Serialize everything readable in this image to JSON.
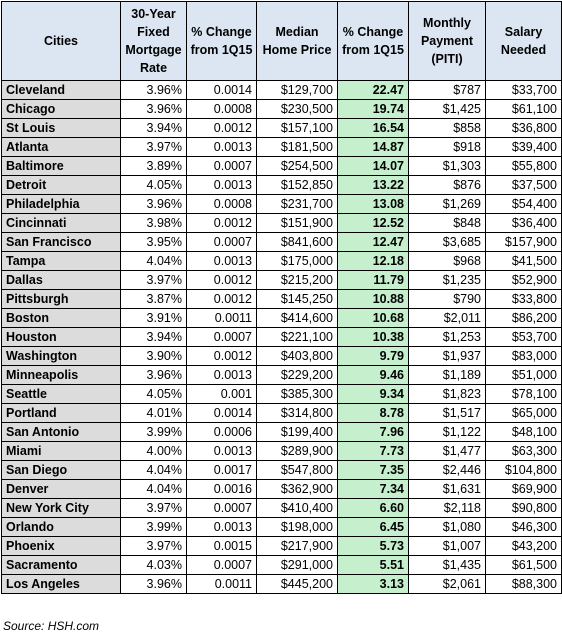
{
  "headers": [
    "Cities",
    "30-Year Fixed Mortgage Rate",
    "% Change from 1Q15",
    "Median Home Price",
    "% Change from 1Q15",
    "Monthly Payment (PITI)",
    "Salary Needed"
  ],
  "rows": [
    [
      "Cleveland",
      "3.96%",
      "0.0014",
      "$129,700",
      "22.47",
      "$787",
      "$33,700"
    ],
    [
      "Chicago",
      "3.96%",
      "0.0008",
      "$230,500",
      "19.74",
      "$1,425",
      "$61,100"
    ],
    [
      "St Louis",
      "3.94%",
      "0.0012",
      "$157,100",
      "16.54",
      "$858",
      "$36,800"
    ],
    [
      "Atlanta",
      "3.97%",
      "0.0013",
      "$181,500",
      "14.87",
      "$918",
      "$39,400"
    ],
    [
      "Baltimore",
      "3.89%",
      "0.0007",
      "$254,500",
      "14.07",
      "$1,303",
      "$55,800"
    ],
    [
      "Detroit",
      "4.05%",
      "0.0013",
      "$152,850",
      "13.22",
      "$876",
      "$37,500"
    ],
    [
      "Philadelphia",
      "3.96%",
      "0.0008",
      "$231,700",
      "13.08",
      "$1,269",
      "$54,400"
    ],
    [
      "Cincinnati",
      "3.98%",
      "0.0012",
      "$151,900",
      "12.52",
      "$848",
      "$36,400"
    ],
    [
      "San Francisco",
      "3.95%",
      "0.0007",
      "$841,600",
      "12.47",
      "$3,685",
      "$157,900"
    ],
    [
      "Tampa",
      "4.04%",
      "0.0013",
      "$175,000",
      "12.18",
      "$968",
      "$41,500"
    ],
    [
      "Dallas",
      "3.97%",
      "0.0012",
      "$215,200",
      "11.79",
      "$1,235",
      "$52,900"
    ],
    [
      "Pittsburgh",
      "3.87%",
      "0.0012",
      "$145,250",
      "10.88",
      "$790",
      "$33,800"
    ],
    [
      "Boston",
      "3.91%",
      "0.0011",
      "$414,600",
      "10.68",
      "$2,011",
      "$86,200"
    ],
    [
      "Houston",
      "3.94%",
      "0.0007",
      "$221,100",
      "10.38",
      "$1,253",
      "$53,700"
    ],
    [
      "Washington",
      "3.90%",
      "0.0012",
      "$403,800",
      "9.79",
      "$1,937",
      "$83,000"
    ],
    [
      "Minneapolis",
      "3.96%",
      "0.0013",
      "$229,200",
      "9.46",
      "$1,189",
      "$51,000"
    ],
    [
      "Seattle",
      "4.05%",
      "0.001",
      "$385,300",
      "9.34",
      "$1,823",
      "$78,100"
    ],
    [
      "Portland",
      "4.01%",
      "0.0014",
      "$314,800",
      "8.78",
      "$1,517",
      "$65,000"
    ],
    [
      "San Antonio",
      "3.99%",
      "0.0006",
      "$199,400",
      "7.96",
      "$1,122",
      "$48,100"
    ],
    [
      "Miami",
      "4.00%",
      "0.0013",
      "$289,900",
      "7.73",
      "$1,477",
      "$63,300"
    ],
    [
      "San Diego",
      "4.04%",
      "0.0017",
      "$547,800",
      "7.35",
      "$2,446",
      "$104,800"
    ],
    [
      "Denver",
      "4.04%",
      "0.0016",
      "$362,900",
      "7.34",
      "$1,631",
      "$69,900"
    ],
    [
      "New York City",
      "3.97%",
      "0.0007",
      "$410,400",
      "6.60",
      "$2,118",
      "$90,800"
    ],
    [
      "Orlando",
      "3.99%",
      "0.0013",
      "$198,000",
      "6.45",
      "$1,080",
      "$46,300"
    ],
    [
      "Phoenix",
      "3.97%",
      "0.0015",
      "$217,900",
      "5.73",
      "$1,007",
      "$43,200"
    ],
    [
      "Sacramento",
      "4.03%",
      "0.0007",
      "$291,000",
      "5.51",
      "$1,435",
      "$61,500"
    ],
    [
      "Los Angeles",
      "3.96%",
      "0.0011",
      "$445,200",
      "3.13",
      "$2,061",
      "$88,300"
    ]
  ],
  "source": "Source: HSH.com",
  "colors": {
    "header_bg": "#dce6f2",
    "city_bg": "#dcdcdc",
    "change_highlight": "#c6efce"
  }
}
